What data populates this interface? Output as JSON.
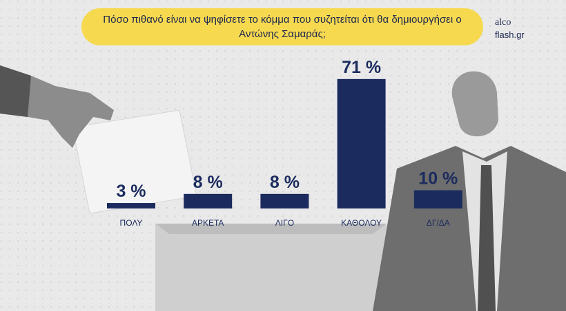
{
  "chart_data": {
    "type": "bar",
    "title": "Πόσο πιθανό είναι να ψηφίσετε το κόμμα που συζητείται ότι θα δημιουργήσει ο Αντώνης Σαμαράς;",
    "categories": [
      "ΠΟΛΥ",
      "ΑΡΚΕΤΑ",
      "ΛΙΓΟ",
      "ΚΑΘΟΛΟΥ",
      "ΔΓ/ΔΑ"
    ],
    "values": [
      3,
      8,
      8,
      71,
      10
    ],
    "value_labels": [
      "3 %",
      "8 %",
      "8 %",
      "71 %",
      "10 %"
    ],
    "color": "#1c2b5e"
  },
  "logo": {
    "brand": "alco",
    "site": "flash.gr"
  }
}
